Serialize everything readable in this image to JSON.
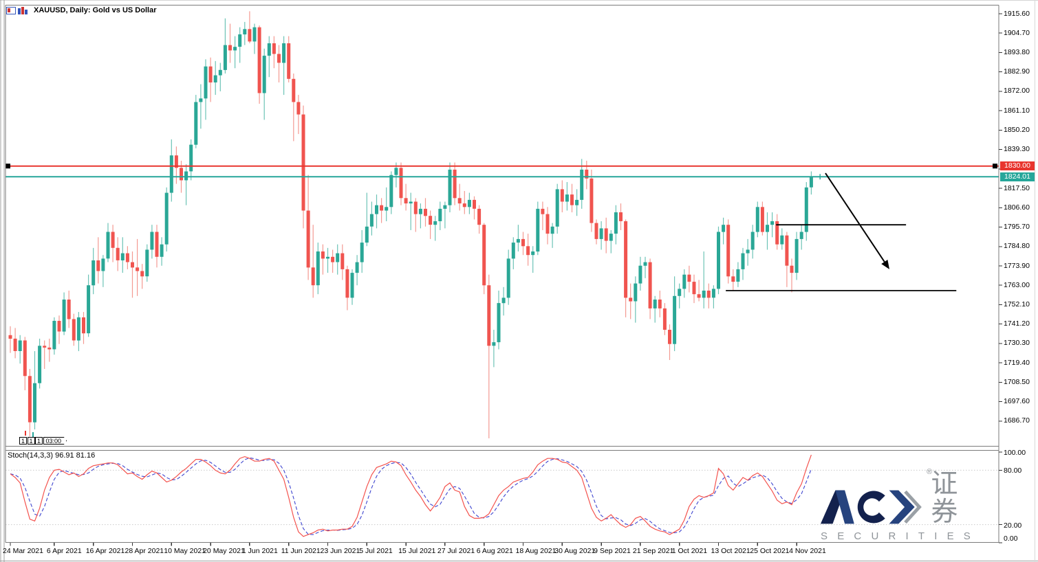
{
  "window": {
    "title": "XAUUSD, Daily:  Gold vs US Dollar"
  },
  "colors": {
    "bull_body": "#2aa796",
    "bull_wick": "#6cc3b6",
    "bear_body": "#f0544f",
    "bear_wick": "#f49a92",
    "hline_red": "#e8352e",
    "hline_teal": "#26a69a",
    "stoch_k": "#f4524d",
    "stoch_d": "#3d44cf",
    "grid_dotted": "#c9c9c9",
    "frame": "#7a7a7a",
    "window_edge": "#a0a0a0",
    "object_black": "#000000",
    "logo_navy_dark": "#13214d",
    "logo_navy_light": "#26437e",
    "logo_gray": "#8f9499"
  },
  "chart_data": {
    "type": "candlestick",
    "symbol": "XAUUSD",
    "timeframe": "Daily",
    "description": "Gold vs US Dollar",
    "grid": "off",
    "price_axis_labels": [
      "1915.60",
      "1904.70",
      "1893.80",
      "1882.90",
      "1872.00",
      "1861.10",
      "1850.20",
      "1839.30",
      "1828.40",
      "1817.50",
      "1806.60",
      "1795.70",
      "1784.80",
      "1773.90",
      "1763.00",
      "1752.10",
      "1741.20",
      "1730.30",
      "1719.40",
      "1708.50",
      "1697.60",
      "1686.70"
    ],
    "price_axis_max": 1915.6,
    "price_axis_min": 1686.7,
    "price_step": 10.9,
    "date_labels": [
      {
        "text": "24 Mar 2021",
        "bar": 0
      },
      {
        "text": "6 Apr 2021",
        "bar": 9
      },
      {
        "text": "16 Apr 2021",
        "bar": 17
      },
      {
        "text": "28 Apr 2021",
        "bar": 25
      },
      {
        "text": "10 May 2021",
        "bar": 33
      },
      {
        "text": "20 May 2021",
        "bar": 41
      },
      {
        "text": "1 Jun 2021",
        "bar": 49
      },
      {
        "text": "11 Jun 2021",
        "bar": 57
      },
      {
        "text": "23 Jun 2021",
        "bar": 65
      },
      {
        "text": "5 Jul 2021",
        "bar": 73
      },
      {
        "text": "15 Jul 2021",
        "bar": 81
      },
      {
        "text": "27 Jul 2021",
        "bar": 89
      },
      {
        "text": "6 Aug 2021",
        "bar": 97
      },
      {
        "text": "18 Aug 2021",
        "bar": 105
      },
      {
        "text": "30 Aug 2021",
        "bar": 113
      },
      {
        "text": "9 Sep 2021",
        "bar": 121
      },
      {
        "text": "21 Sep 2021",
        "bar": 129
      },
      {
        "text": "1 Oct 2021",
        "bar": 137
      },
      {
        "text": "13 Oct 2021",
        "bar": 145
      },
      {
        "text": "25 Oct 2021",
        "bar": 153
      },
      {
        "text": "4 Nov 2021",
        "bar": 161
      }
    ],
    "bars_total": 165,
    "candles": [
      [
        1735,
        1740,
        1725,
        1733
      ],
      [
        1733,
        1739,
        1722,
        1726
      ],
      [
        1726,
        1735,
        1719,
        1732
      ],
      [
        1732,
        1734,
        1704,
        1712
      ],
      [
        1712,
        1716,
        1678,
        1686
      ],
      [
        1686,
        1726,
        1682,
        1708
      ],
      [
        1708,
        1733,
        1705,
        1729
      ],
      [
        1729,
        1732,
        1716,
        1728
      ],
      [
        1728,
        1733,
        1720,
        1727
      ],
      [
        1727,
        1745,
        1724,
        1743
      ],
      [
        1743,
        1746,
        1730,
        1737
      ],
      [
        1737,
        1759,
        1735,
        1755
      ],
      [
        1755,
        1760,
        1739,
        1744
      ],
      [
        1744,
        1747,
        1729,
        1732
      ],
      [
        1732,
        1748,
        1726,
        1745
      ],
      [
        1745,
        1748,
        1730,
        1736
      ],
      [
        1736,
        1769,
        1734,
        1763
      ],
      [
        1763,
        1784,
        1758,
        1777
      ],
      [
        1777,
        1790,
        1764,
        1771
      ],
      [
        1771,
        1780,
        1762,
        1778
      ],
      [
        1778,
        1798,
        1776,
        1793
      ],
      [
        1793,
        1797,
        1776,
        1784
      ],
      [
        1784,
        1790,
        1771,
        1777
      ],
      [
        1777,
        1790,
        1770,
        1781
      ],
      [
        1781,
        1785,
        1772,
        1776
      ],
      [
        1776,
        1782,
        1756,
        1773
      ],
      [
        1773,
        1789,
        1757,
        1771
      ],
      [
        1771,
        1775,
        1761,
        1768
      ],
      [
        1768,
        1786,
        1765,
        1783
      ],
      [
        1783,
        1797,
        1778,
        1793
      ],
      [
        1793,
        1797,
        1773,
        1779
      ],
      [
        1779,
        1790,
        1774,
        1786
      ],
      [
        1786,
        1818,
        1782,
        1815
      ],
      [
        1815,
        1845,
        1810,
        1836
      ],
      [
        1836,
        1841,
        1820,
        1829
      ],
      [
        1829,
        1833,
        1815,
        1822
      ],
      [
        1822,
        1831,
        1808,
        1827
      ],
      [
        1827,
        1845,
        1822,
        1842
      ],
      [
        1842,
        1870,
        1840,
        1866
      ],
      [
        1866,
        1876,
        1851,
        1868
      ],
      [
        1868,
        1890,
        1856,
        1886
      ],
      [
        1886,
        1891,
        1866,
        1877
      ],
      [
        1877,
        1889,
        1870,
        1881
      ],
      [
        1881,
        1888,
        1872,
        1884
      ],
      [
        1884,
        1913,
        1882,
        1898
      ],
      [
        1898,
        1910,
        1888,
        1895
      ],
      [
        1895,
        1903,
        1885,
        1897
      ],
      [
        1897,
        1908,
        1888,
        1904
      ],
      [
        1904,
        1911,
        1898,
        1907
      ],
      [
        1907,
        1917,
        1899,
        1900
      ],
      [
        1900,
        1910,
        1893,
        1908
      ],
      [
        1908,
        1909,
        1865,
        1871
      ],
      [
        1871,
        1896,
        1856,
        1892
      ],
      [
        1892,
        1903,
        1880,
        1899
      ],
      [
        1899,
        1903,
        1885,
        1893
      ],
      [
        1893,
        1898,
        1877,
        1888
      ],
      [
        1888,
        1903,
        1870,
        1899
      ],
      [
        1899,
        1903,
        1877,
        1879
      ],
      [
        1879,
        1882,
        1844,
        1866
      ],
      [
        1866,
        1870,
        1848,
        1859
      ],
      [
        1859,
        1864,
        1795,
        1805
      ],
      [
        1805,
        1825,
        1766,
        1773
      ],
      [
        1773,
        1797,
        1756,
        1763
      ],
      [
        1763,
        1787,
        1758,
        1782
      ],
      [
        1782,
        1786,
        1769,
        1778
      ],
      [
        1778,
        1784,
        1770,
        1779
      ],
      [
        1779,
        1783,
        1770,
        1776
      ],
      [
        1776,
        1786,
        1769,
        1781
      ],
      [
        1781,
        1786,
        1766,
        1772
      ],
      [
        1772,
        1774,
        1749,
        1756
      ],
      [
        1756,
        1772,
        1752,
        1770
      ],
      [
        1770,
        1780,
        1763,
        1776
      ],
      [
        1776,
        1794,
        1770,
        1787
      ],
      [
        1787,
        1815,
        1785,
        1796
      ],
      [
        1796,
        1810,
        1791,
        1803
      ],
      [
        1803,
        1814,
        1795,
        1808
      ],
      [
        1808,
        1812,
        1798,
        1805
      ],
      [
        1805,
        1818,
        1799,
        1807
      ],
      [
        1807,
        1827,
        1803,
        1825
      ],
      [
        1825,
        1832,
        1818,
        1829
      ],
      [
        1829,
        1832,
        1808,
        1812
      ],
      [
        1812,
        1820,
        1805,
        1809
      ],
      [
        1809,
        1815,
        1794,
        1810
      ],
      [
        1810,
        1812,
        1793,
        1803
      ],
      [
        1803,
        1809,
        1795,
        1806
      ],
      [
        1806,
        1812,
        1796,
        1802
      ],
      [
        1802,
        1805,
        1789,
        1797
      ],
      [
        1797,
        1802,
        1788,
        1799
      ],
      [
        1799,
        1810,
        1794,
        1806
      ],
      [
        1806,
        1810,
        1795,
        1808
      ],
      [
        1808,
        1832,
        1804,
        1828
      ],
      [
        1828,
        1832,
        1808,
        1812
      ],
      [
        1812,
        1820,
        1805,
        1809
      ],
      [
        1809,
        1816,
        1803,
        1807
      ],
      [
        1807,
        1815,
        1803,
        1811
      ],
      [
        1811,
        1813,
        1800,
        1806
      ],
      [
        1806,
        1808,
        1792,
        1797
      ],
      [
        1797,
        1798,
        1758,
        1763
      ],
      [
        1763,
        1769,
        1677,
        1729
      ],
      [
        1729,
        1738,
        1717,
        1731
      ],
      [
        1731,
        1760,
        1727,
        1753
      ],
      [
        1753,
        1762,
        1746,
        1756
      ],
      [
        1756,
        1783,
        1752,
        1778
      ],
      [
        1778,
        1790,
        1772,
        1787
      ],
      [
        1787,
        1797,
        1782,
        1789
      ],
      [
        1789,
        1793,
        1780,
        1785
      ],
      [
        1785,
        1792,
        1774,
        1780
      ],
      [
        1780,
        1785,
        1770,
        1782
      ],
      [
        1782,
        1810,
        1780,
        1806
      ],
      [
        1806,
        1810,
        1794,
        1803
      ],
      [
        1803,
        1807,
        1786,
        1792
      ],
      [
        1792,
        1798,
        1784,
        1796
      ],
      [
        1796,
        1820,
        1792,
        1817
      ],
      [
        1817,
        1822,
        1804,
        1810
      ],
      [
        1810,
        1821,
        1805,
        1814
      ],
      [
        1814,
        1820,
        1804,
        1808
      ],
      [
        1808,
        1817,
        1802,
        1811
      ],
      [
        1811,
        1834,
        1806,
        1828
      ],
      [
        1828,
        1833,
        1817,
        1823
      ],
      [
        1823,
        1828,
        1793,
        1798
      ],
      [
        1798,
        1800,
        1786,
        1789
      ],
      [
        1789,
        1799,
        1783,
        1795
      ],
      [
        1795,
        1801,
        1781,
        1788
      ],
      [
        1788,
        1794,
        1781,
        1792
      ],
      [
        1792,
        1808,
        1786,
        1804
      ],
      [
        1804,
        1809,
        1794,
        1799
      ],
      [
        1799,
        1800,
        1745,
        1756
      ],
      [
        1756,
        1764,
        1744,
        1754
      ],
      [
        1754,
        1768,
        1742,
        1764
      ],
      [
        1764,
        1779,
        1760,
        1774
      ],
      [
        1774,
        1779,
        1767,
        1776
      ],
      [
        1776,
        1778,
        1744,
        1750
      ],
      [
        1750,
        1757,
        1742,
        1755
      ],
      [
        1755,
        1760,
        1745,
        1750
      ],
      [
        1750,
        1753,
        1735,
        1738
      ],
      [
        1738,
        1741,
        1721,
        1730
      ],
      [
        1730,
        1768,
        1726,
        1757
      ],
      [
        1757,
        1764,
        1750,
        1761
      ],
      [
        1761,
        1772,
        1756,
        1769
      ],
      [
        1769,
        1774,
        1759,
        1765
      ],
      [
        1765,
        1769,
        1753,
        1758
      ],
      [
        1758,
        1766,
        1754,
        1756
      ],
      [
        1756,
        1782,
        1750,
        1760
      ],
      [
        1760,
        1764,
        1750,
        1756
      ],
      [
        1756,
        1763,
        1750,
        1761
      ],
      [
        1761,
        1796,
        1758,
        1793
      ],
      [
        1793,
        1801,
        1786,
        1797
      ],
      [
        1797,
        1800,
        1764,
        1768
      ],
      [
        1768,
        1772,
        1760,
        1765
      ],
      [
        1765,
        1776,
        1762,
        1772
      ],
      [
        1772,
        1784,
        1766,
        1781
      ],
      [
        1781,
        1789,
        1774,
        1783
      ],
      [
        1783,
        1797,
        1778,
        1793
      ],
      [
        1793,
        1810,
        1790,
        1807
      ],
      [
        1807,
        1810,
        1791,
        1793
      ],
      [
        1793,
        1804,
        1783,
        1797
      ],
      [
        1797,
        1804,
        1790,
        1799
      ],
      [
        1799,
        1803,
        1783,
        1786
      ],
      [
        1786,
        1795,
        1783,
        1791
      ],
      [
        1791,
        1793,
        1762,
        1774
      ],
      [
        1774,
        1778,
        1759,
        1770
      ],
      [
        1770,
        1793,
        1766,
        1789
      ],
      [
        1789,
        1797,
        1783,
        1793
      ],
      [
        1793,
        1821,
        1788,
        1818
      ],
      [
        1818,
        1827,
        1814,
        1824
      ]
    ],
    "horizontal_lines": [
      {
        "price": 1830.0,
        "tag": "1830.00",
        "color": "#e8352e",
        "width": 2,
        "selected": true
      },
      {
        "price": 1824.01,
        "tag": "1824.01",
        "color": "#26a69a",
        "width": 2,
        "selected": false
      }
    ],
    "trendlines": [
      {
        "from_bar": 156.8,
        "to_bar": 183.4,
        "price": 1797
      },
      {
        "from_bar": 146.5,
        "to_bar": 193.7,
        "price": 1760
      }
    ],
    "arrow": {
      "from_bar": 166.9,
      "from_price": 1826,
      "to_bar": 180,
      "to_price": 1772
    },
    "anchor_tags": [
      "1",
      "1",
      "1",
      "03:00"
    ],
    "stochastic": {
      "label": "Stoch(14,3,3) 96.91 81.16",
      "k_period": 14,
      "d_period": 3,
      "slowing": 3,
      "k_last": "96.91",
      "d_last": "81.16",
      "levels": [
        80,
        20
      ],
      "axis_labels": [
        {
          "text": "100.00",
          "value": 100
        },
        {
          "text": "80.00",
          "value": 80
        },
        {
          "text": "20.00",
          "value": 20
        },
        {
          "text": "0.00",
          "value": 0
        }
      ],
      "k_values": [
        76,
        72,
        66,
        45,
        26,
        24,
        38,
        58,
        72,
        80,
        81,
        78,
        75,
        77,
        73,
        76,
        82,
        85,
        86,
        87,
        88,
        88,
        86,
        81,
        76,
        77,
        73,
        70,
        75,
        79,
        77,
        72,
        67,
        69,
        73,
        78,
        82,
        87,
        92,
        92,
        89,
        85,
        80,
        77,
        76,
        80,
        87,
        93,
        95,
        93,
        90,
        90,
        92,
        93,
        90,
        80,
        70,
        50,
        28,
        12,
        7,
        9,
        11,
        14,
        15,
        13,
        14,
        14,
        15,
        15,
        18,
        28,
        45,
        62,
        75,
        83,
        85,
        87,
        90,
        89,
        85,
        75,
        67,
        58,
        51,
        42,
        35,
        42,
        50,
        62,
        66,
        58,
        56,
        40,
        30,
        27,
        27,
        28,
        32,
        42,
        52,
        58,
        62,
        67,
        69,
        71,
        72,
        78,
        86,
        90,
        93,
        93,
        92,
        89,
        88,
        84,
        80,
        72,
        55,
        38,
        28,
        24,
        27,
        31,
        25,
        20,
        17,
        20,
        27,
        29,
        24,
        18,
        15,
        13,
        12,
        9,
        12,
        15,
        25,
        40,
        48,
        52,
        50,
        52,
        55,
        82,
        76,
        63,
        58,
        65,
        72,
        69,
        74,
        77,
        73,
        65,
        57,
        47,
        43,
        45,
        42,
        55,
        65,
        82,
        96.91
      ]
    }
  },
  "watermark": {
    "brand": "ACY",
    "registered": "®",
    "chinese": "证券",
    "subtitle": "SECURITIES"
  }
}
